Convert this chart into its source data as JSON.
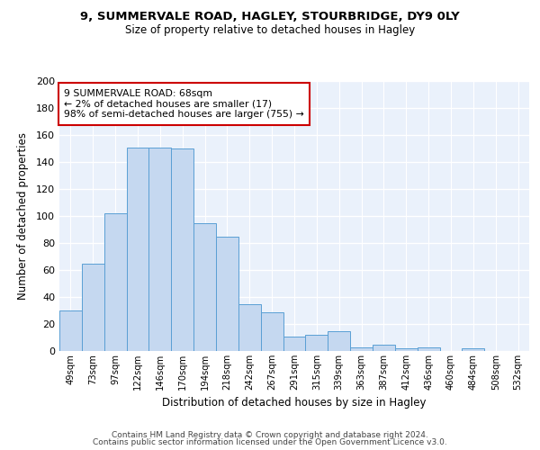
{
  "title1": "9, SUMMERVALE ROAD, HAGLEY, STOURBRIDGE, DY9 0LY",
  "title2": "Size of property relative to detached houses in Hagley",
  "xlabel": "Distribution of detached houses by size in Hagley",
  "ylabel": "Number of detached properties",
  "bar_labels": [
    "49sqm",
    "73sqm",
    "97sqm",
    "122sqm",
    "146sqm",
    "170sqm",
    "194sqm",
    "218sqm",
    "242sqm",
    "267sqm",
    "291sqm",
    "315sqm",
    "339sqm",
    "363sqm",
    "387sqm",
    "412sqm",
    "436sqm",
    "460sqm",
    "484sqm",
    "508sqm",
    "532sqm"
  ],
  "bar_values": [
    30,
    65,
    102,
    151,
    151,
    150,
    95,
    85,
    35,
    29,
    11,
    12,
    15,
    3,
    5,
    2,
    3,
    0,
    2,
    0,
    0
  ],
  "bar_color": "#c5d8f0",
  "bar_edge_color": "#5a9fd4",
  "bg_color": "#eaf1fb",
  "grid_color": "#ffffff",
  "annotation_text": "9 SUMMERVALE ROAD: 68sqm\n← 2% of detached houses are smaller (17)\n98% of semi-detached houses are larger (755) →",
  "annotation_box_color": "#ffffff",
  "annotation_box_edge": "#cc0000",
  "ylim": [
    0,
    200
  ],
  "yticks": [
    0,
    20,
    40,
    60,
    80,
    100,
    120,
    140,
    160,
    180,
    200
  ],
  "footer1": "Contains HM Land Registry data © Crown copyright and database right 2024.",
  "footer2": "Contains public sector information licensed under the Open Government Licence v3.0."
}
